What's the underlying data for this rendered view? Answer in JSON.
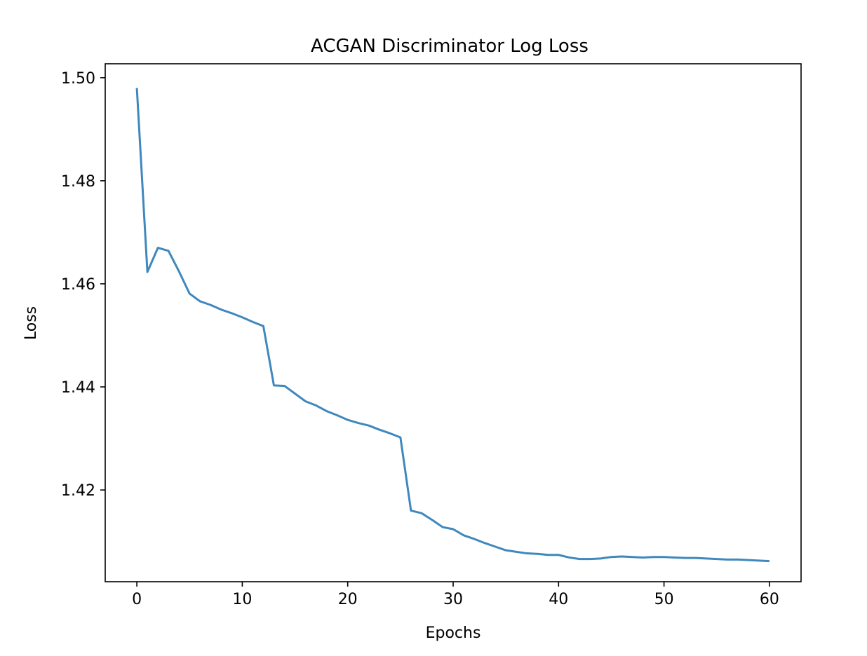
{
  "chart_data": {
    "type": "line",
    "title": "ACGAN Discriminator Log Loss",
    "xlabel": "Epochs",
    "ylabel": "Loss",
    "xlim": [
      -3,
      63
    ],
    "ylim": [
      1.4022,
      1.5027
    ],
    "xticks": [
      0,
      10,
      20,
      30,
      40,
      50,
      60
    ],
    "yticks": [
      1.42,
      1.44,
      1.46,
      1.48,
      1.5
    ],
    "ytick_labels": [
      "1.42",
      "1.44",
      "1.46",
      "1.48",
      "1.50"
    ],
    "grid": false,
    "series": [
      {
        "color": "#3f88bd",
        "x": [
          0,
          1,
          2,
          3,
          4,
          5,
          6,
          7,
          8,
          9,
          10,
          11,
          12,
          13,
          14,
          15,
          16,
          17,
          18,
          19,
          20,
          21,
          22,
          23,
          24,
          25,
          26,
          27,
          28,
          29,
          30,
          31,
          32,
          33,
          34,
          35,
          36,
          37,
          38,
          39,
          40,
          41,
          42,
          43,
          44,
          45,
          46,
          47,
          48,
          49,
          50,
          51,
          52,
          53,
          54,
          55,
          56,
          57,
          58,
          59,
          60
        ],
        "y": [
          1.498,
          1.4623,
          1.467,
          1.4664,
          1.4624,
          1.4581,
          1.4566,
          1.4559,
          1.455,
          1.4543,
          1.4535,
          1.4526,
          1.4518,
          1.4403,
          1.4402,
          1.4387,
          1.4372,
          1.4364,
          1.4353,
          1.4345,
          1.4336,
          1.433,
          1.4325,
          1.4317,
          1.431,
          1.4302,
          1.416,
          1.4155,
          1.4142,
          1.4128,
          1.4124,
          1.4112,
          1.4105,
          1.4097,
          1.409,
          1.4083,
          1.408,
          1.4077,
          1.4076,
          1.4074,
          1.4074,
          1.4069,
          1.4066,
          1.4066,
          1.4067,
          1.407,
          1.4071,
          1.407,
          1.4069,
          1.407,
          1.407,
          1.4069,
          1.4068,
          1.4068,
          1.4067,
          1.4066,
          1.4065,
          1.4065,
          1.4064,
          1.4063,
          1.4062
        ]
      }
    ]
  }
}
